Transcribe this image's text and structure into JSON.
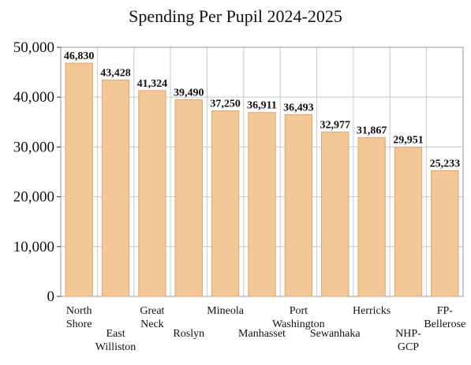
{
  "chart_data": {
    "type": "bar",
    "title": "Spending Per Pupil 2024-2025",
    "xlabel": "",
    "ylabel": "",
    "ylim": [
      0,
      50000
    ],
    "yticks": [
      0,
      10000,
      20000,
      30000,
      40000,
      50000
    ],
    "ytick_labels": [
      "0",
      "10,000",
      "20,000",
      "30,000",
      "40,000",
      "50,000"
    ],
    "grid": true,
    "bar_color": "#F4C797",
    "bar_edge_color": "#D9A877",
    "grid_color": "#c9c9c9",
    "categories": [
      [
        "North",
        "Shore"
      ],
      [
        "East",
        "Williston"
      ],
      [
        "Great",
        "Neck"
      ],
      [
        "Roslyn"
      ],
      [
        "Mineola"
      ],
      [
        "Manhasset"
      ],
      [
        "Port",
        "Washington"
      ],
      [
        "Sewanhaka"
      ],
      [
        "Herricks"
      ],
      [
        "NHP-",
        "GCP"
      ],
      [
        "FP-",
        "Bellerose"
      ]
    ],
    "values": [
      46830,
      43428,
      41324,
      39490,
      37250,
      36911,
      36493,
      32977,
      31867,
      29951,
      25233
    ],
    "data_labels": [
      "46,830",
      "43,428",
      "41,324",
      "39,490",
      "37,250",
      "36,911",
      "36,493",
      "32,977",
      "31,867",
      "29,951",
      "25,233"
    ]
  }
}
